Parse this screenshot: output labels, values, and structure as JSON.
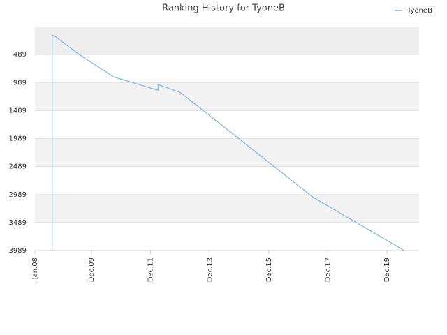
{
  "chart_data": {
    "type": "line",
    "title": "Ranking History for TyoneB",
    "x": [
      "2008-08",
      "2008-08",
      "2008-08",
      "2008-09",
      "2008-10",
      "2009-01",
      "2009-07",
      "2010-09",
      "2012-03",
      "2012-03",
      "2012-12",
      "2017-06",
      "2020-07"
    ],
    "series": [
      {
        "name": "TyoneB",
        "color": "#7cb5ec",
        "values": [
          3989,
          2130,
          140,
          160,
          190,
          289,
          489,
          889,
          1126,
          1026,
          1164,
          3039,
          3989
        ]
      }
    ],
    "xlim": [
      "2008-01",
      "2021-01"
    ],
    "xticks": [
      {
        "value": "2008-01",
        "label": "Jan.08"
      },
      {
        "value": "2009-12",
        "label": "Dec.09"
      },
      {
        "value": "2011-12",
        "label": "Dec.11"
      },
      {
        "value": "2013-12",
        "label": "Dec.13"
      },
      {
        "value": "2015-12",
        "label": "Dec.15"
      },
      {
        "value": "2017-12",
        "label": "Dec.17"
      },
      {
        "value": "2019-12",
        "label": "Dec.19"
      }
    ],
    "ylim": [
      3989,
      1
    ],
    "yinverted": true,
    "yticks": [
      489,
      989,
      1489,
      1989,
      2489,
      2989,
      3489,
      3989
    ],
    "grid": true,
    "legend": "top-right"
  }
}
